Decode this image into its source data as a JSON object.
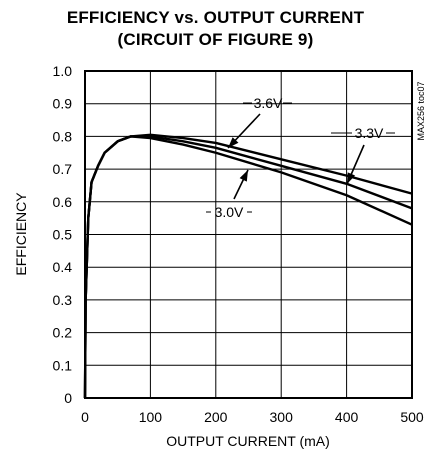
{
  "chart_data": {
    "type": "line",
    "title": "EFFICIENCY vs. OUTPUT CURRENT",
    "subtitle": "(CIRCUIT OF FIGURE 9)",
    "xlabel": "OUTPUT CURRENT (mA)",
    "ylabel": "EFFICIENCY",
    "xlim": [
      0,
      500
    ],
    "ylim": [
      0,
      1.0
    ],
    "x_ticks": [
      "0",
      "100",
      "200",
      "300",
      "400",
      "500"
    ],
    "y_ticks": [
      "0",
      "0.1",
      "0.2",
      "0.3",
      "0.4",
      "0.5",
      "0.6",
      "0.7",
      "0.8",
      "0.9",
      "1.0"
    ],
    "grid": true,
    "side_label": "MAX256 toc07",
    "series": [
      {
        "name": "3.6V",
        "x": [
          1,
          5,
          10,
          20,
          30,
          50,
          70,
          100,
          150,
          200,
          300,
          400,
          500
        ],
        "values": [
          0.3,
          0.55,
          0.66,
          0.71,
          0.75,
          0.785,
          0.8,
          0.805,
          0.795,
          0.78,
          0.73,
          0.68,
          0.625
        ]
      },
      {
        "name": "3.3V",
        "x": [
          1,
          5,
          10,
          20,
          30,
          50,
          70,
          100,
          150,
          200,
          300,
          400,
          500
        ],
        "values": [
          0.3,
          0.55,
          0.66,
          0.71,
          0.75,
          0.785,
          0.8,
          0.8,
          0.785,
          0.765,
          0.71,
          0.655,
          0.58
        ]
      },
      {
        "name": "3.0V",
        "x": [
          1,
          5,
          10,
          20,
          30,
          50,
          70,
          100,
          150,
          200,
          300,
          400,
          500
        ],
        "values": [
          0.3,
          0.55,
          0.66,
          0.71,
          0.75,
          0.785,
          0.8,
          0.795,
          0.775,
          0.75,
          0.69,
          0.62,
          0.53
        ]
      }
    ]
  }
}
